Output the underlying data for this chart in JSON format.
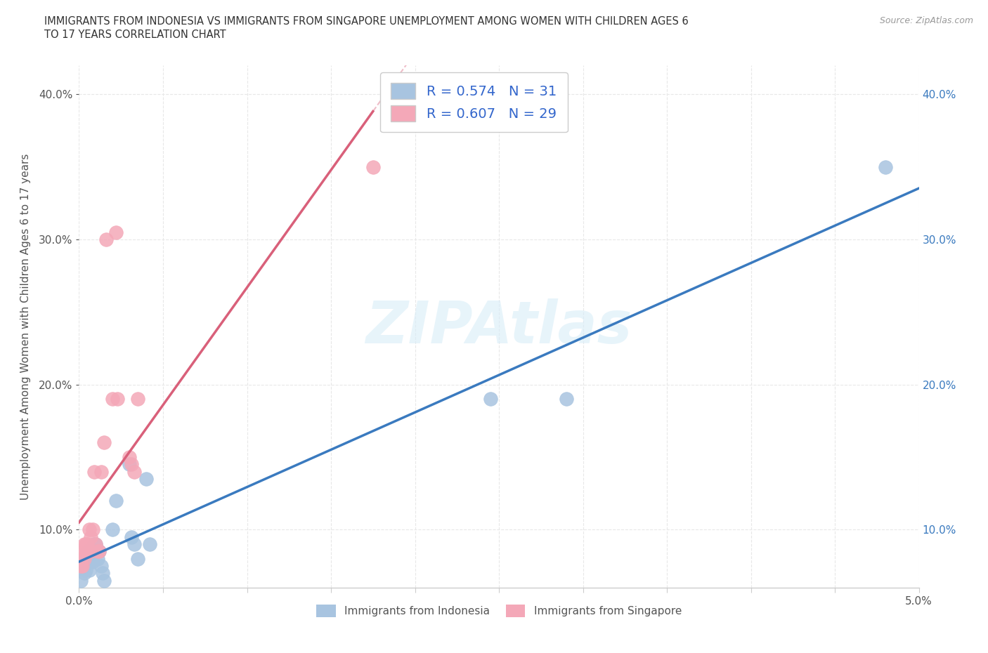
{
  "title_line1": "IMMIGRANTS FROM INDONESIA VS IMMIGRANTS FROM SINGAPORE UNEMPLOYMENT AMONG WOMEN WITH CHILDREN AGES 6",
  "title_line2": "TO 17 YEARS CORRELATION CHART",
  "source": "Source: ZipAtlas.com",
  "ylabel": "Unemployment Among Women with Children Ages 6 to 17 years",
  "watermark": "ZIPAtlas",
  "indonesia_R": 0.574,
  "indonesia_N": 31,
  "singapore_R": 0.607,
  "singapore_N": 29,
  "indonesia_color": "#a8c4e0",
  "singapore_color": "#f4a8b8",
  "indonesia_line_color": "#3a7abf",
  "singapore_line_color": "#d9607a",
  "singapore_dash_color": "#e8a0b0",
  "background_color": "#ffffff",
  "indonesia_x": [
    0.0001,
    0.0002,
    0.0002,
    0.0003,
    0.0003,
    0.0004,
    0.0005,
    0.0005,
    0.0006,
    0.0006,
    0.0007,
    0.0008,
    0.0009,
    0.001,
    0.001,
    0.0011,
    0.0012,
    0.0013,
    0.0014,
    0.0015,
    0.002,
    0.0022,
    0.003,
    0.0031,
    0.0033,
    0.0035,
    0.004,
    0.0042,
    0.0245,
    0.029,
    0.048
  ],
  "indonesia_y": [
    0.065,
    0.075,
    0.08,
    0.07,
    0.078,
    0.072,
    0.08,
    0.085,
    0.078,
    0.072,
    0.085,
    0.078,
    0.09,
    0.085,
    0.09,
    0.08,
    0.085,
    0.075,
    0.07,
    0.065,
    0.1,
    0.12,
    0.145,
    0.095,
    0.09,
    0.08,
    0.135,
    0.09,
    0.19,
    0.19,
    0.35
  ],
  "singapore_x": [
    0.0001,
    0.0001,
    0.0002,
    0.0002,
    0.0003,
    0.0003,
    0.0004,
    0.0004,
    0.0005,
    0.0005,
    0.0006,
    0.0007,
    0.0007,
    0.0008,
    0.0009,
    0.001,
    0.0011,
    0.0012,
    0.0013,
    0.0015,
    0.0016,
    0.002,
    0.0022,
    0.0023,
    0.003,
    0.0031,
    0.0033,
    0.0035,
    0.0175
  ],
  "singapore_y": [
    0.08,
    0.075,
    0.085,
    0.075,
    0.09,
    0.08,
    0.09,
    0.085,
    0.09,
    0.085,
    0.1,
    0.085,
    0.095,
    0.1,
    0.14,
    0.09,
    0.085,
    0.085,
    0.14,
    0.16,
    0.3,
    0.19,
    0.305,
    0.19,
    0.15,
    0.145,
    0.14,
    0.19,
    0.35
  ],
  "xlim": [
    0.0,
    0.05
  ],
  "ylim": [
    0.06,
    0.42
  ],
  "yticks": [
    0.1,
    0.2,
    0.3,
    0.4
  ],
  "xticks": [
    0.0,
    0.005,
    0.01,
    0.015,
    0.02,
    0.025,
    0.03,
    0.035,
    0.04,
    0.045,
    0.05
  ],
  "x_label_ticks": [
    0.0,
    0.05
  ],
  "grid_color": "#e8e8e8",
  "grid_style": "--"
}
